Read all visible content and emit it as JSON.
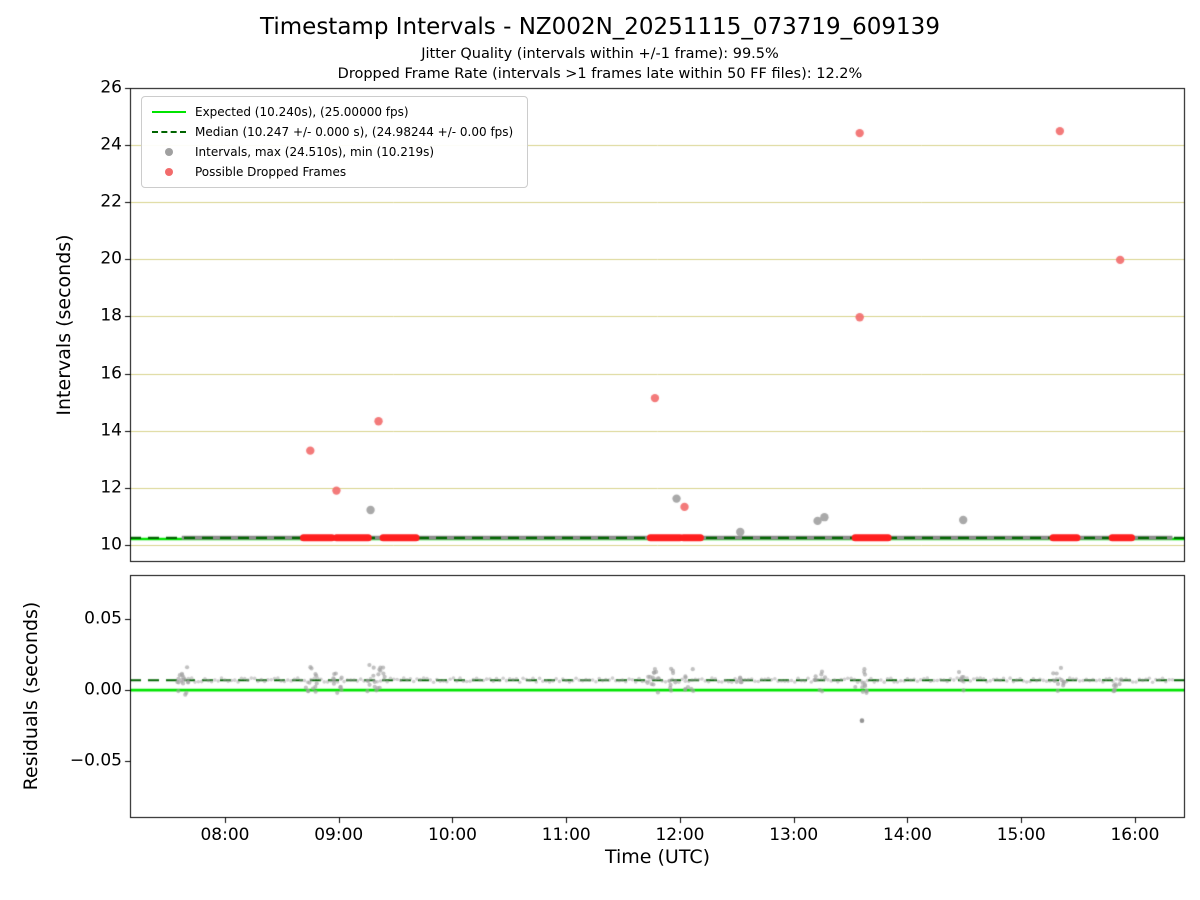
{
  "page": {
    "title": "Timestamp Intervals - NZ002N_20251115_073719_609139",
    "subtitle1": "Jitter Quality (intervals within +/-1 frame): 99.5%",
    "subtitle2": "Dropped Frame Rate (intervals >1 frames late within 50 FF files): 12.2%",
    "xlabel": "Time (UTC)"
  },
  "colors": {
    "expected": "#00e400",
    "median": "#006400",
    "interval_points": "#a0a0a0",
    "interval_line": "#8c8c8c",
    "dropped": "#f26b6b",
    "dropped_segment": "#ff1e1e",
    "grid": "#d9d38c",
    "axis": "#000000",
    "background": "#ffffff"
  },
  "chart_data": [
    {
      "type": "scatter",
      "title": "Timestamp Intervals - NZ002N_20251115_073719_609139",
      "ylabel": "Intervals (seconds)",
      "ylim": [
        9.4,
        26
      ],
      "xlim": [
        7.165,
        16.44
      ],
      "grid": "horizontal",
      "legend_position": "upper left",
      "yticks": [
        {
          "v": 10,
          "label": "10"
        },
        {
          "v": 12,
          "label": "12"
        },
        {
          "v": 14,
          "label": "14"
        },
        {
          "v": 16,
          "label": "16"
        },
        {
          "v": 18,
          "label": "18"
        },
        {
          "v": 20,
          "label": "20"
        },
        {
          "v": 22,
          "label": "22"
        },
        {
          "v": 24,
          "label": "24"
        },
        {
          "v": 26,
          "label": "26"
        }
      ],
      "xticks": [
        {
          "v": 8,
          "label": "08:00"
        },
        {
          "v": 9,
          "label": "09:00"
        },
        {
          "v": 10,
          "label": "10:00"
        },
        {
          "v": 11,
          "label": "11:00"
        },
        {
          "v": 12,
          "label": "12:00"
        },
        {
          "v": 13,
          "label": "13:00"
        },
        {
          "v": 14,
          "label": "14:00"
        },
        {
          "v": 15,
          "label": "15:00"
        },
        {
          "v": 16,
          "label": "16:00"
        }
      ],
      "legend": [
        {
          "key": "expected",
          "label": "Expected (10.240s), (25.00000 fps)"
        },
        {
          "key": "median",
          "label": "Median (10.247 +/- 0.000 s), (24.98244 +/- 0.00 fps)"
        },
        {
          "key": "intervals",
          "label": "Intervals, max (24.510s), min (10.219s)"
        },
        {
          "key": "dropped",
          "label": "Possible Dropped Frames"
        }
      ],
      "expected_value": 10.24,
      "median_value": 10.247,
      "baseline": {
        "x_start": 7.62,
        "x_end": 16.33,
        "value": 10.247
      },
      "dropped_segments": [
        [
          8.69,
          8.94
        ],
        [
          8.98,
          9.26
        ],
        [
          9.39,
          9.68
        ],
        [
          11.74,
          12.0
        ],
        [
          12.03,
          12.18
        ],
        [
          13.54,
          13.83
        ],
        [
          15.28,
          15.49
        ],
        [
          15.8,
          15.97
        ]
      ],
      "outlier_points": [
        {
          "x": 8.75,
          "y": 13.3,
          "series": "dropped"
        },
        {
          "x": 8.98,
          "y": 11.9,
          "series": "dropped"
        },
        {
          "x": 9.28,
          "y": 11.22,
          "series": "intervals"
        },
        {
          "x": 9.35,
          "y": 14.33,
          "series": "dropped"
        },
        {
          "x": 11.78,
          "y": 15.14,
          "series": "dropped"
        },
        {
          "x": 11.97,
          "y": 11.62,
          "series": "intervals"
        },
        {
          "x": 12.04,
          "y": 11.33,
          "series": "dropped"
        },
        {
          "x": 12.53,
          "y": 10.45,
          "series": "intervals"
        },
        {
          "x": 13.21,
          "y": 10.84,
          "series": "intervals"
        },
        {
          "x": 13.27,
          "y": 10.97,
          "series": "intervals"
        },
        {
          "x": 13.58,
          "y": 24.42,
          "series": "dropped"
        },
        {
          "x": 13.58,
          "y": 17.97,
          "series": "dropped"
        },
        {
          "x": 14.49,
          "y": 10.87,
          "series": "intervals"
        },
        {
          "x": 15.34,
          "y": 24.49,
          "series": "dropped"
        },
        {
          "x": 15.87,
          "y": 19.98,
          "series": "dropped"
        }
      ]
    },
    {
      "type": "scatter",
      "ylabel": "Residuals (seconds)",
      "xlabel": "Time (UTC)",
      "ylim": [
        -0.09,
        0.081
      ],
      "xlim": [
        7.165,
        16.44
      ],
      "yticks": [
        {
          "v": 0.05,
          "label": "0.05"
        },
        {
          "v": 0,
          "label": "0.00"
        },
        {
          "v": -0.05,
          "label": "−0.05"
        }
      ],
      "zero_value": 0,
      "median_value": 0.007,
      "baseline_points": {
        "x_start": 7.62,
        "x_end": 16.33,
        "count": 300,
        "y_center": 0.007,
        "y_jitter": 0.0015
      },
      "clusters": [
        {
          "x": 7.63,
          "n": 16,
          "xs": 0.05,
          "ys": 0.011
        },
        {
          "x": 8.76,
          "n": 12,
          "xs": 0.05,
          "ys": 0.01
        },
        {
          "x": 8.99,
          "n": 10,
          "xs": 0.04,
          "ys": 0.009
        },
        {
          "x": 9.33,
          "n": 18,
          "xs": 0.08,
          "ys": 0.011
        },
        {
          "x": 11.76,
          "n": 12,
          "xs": 0.05,
          "ys": 0.009
        },
        {
          "x": 11.94,
          "n": 8,
          "xs": 0.04,
          "ys": 0.008
        },
        {
          "x": 12.08,
          "n": 8,
          "xs": 0.04,
          "ys": 0.008
        },
        {
          "x": 12.52,
          "n": 5,
          "xs": 0.03,
          "ys": 0.006
        },
        {
          "x": 13.23,
          "n": 8,
          "xs": 0.05,
          "ys": 0.008
        },
        {
          "x": 13.6,
          "n": 12,
          "xs": 0.06,
          "ys": 0.009
        },
        {
          "x": 14.47,
          "n": 6,
          "xs": 0.03,
          "ys": 0.009
        },
        {
          "x": 15.33,
          "n": 10,
          "xs": 0.05,
          "ys": 0.009
        },
        {
          "x": 15.85,
          "n": 8,
          "xs": 0.04,
          "ys": 0.008
        }
      ],
      "outliers": [
        {
          "x": 13.6,
          "y": -0.0215
        }
      ]
    }
  ]
}
